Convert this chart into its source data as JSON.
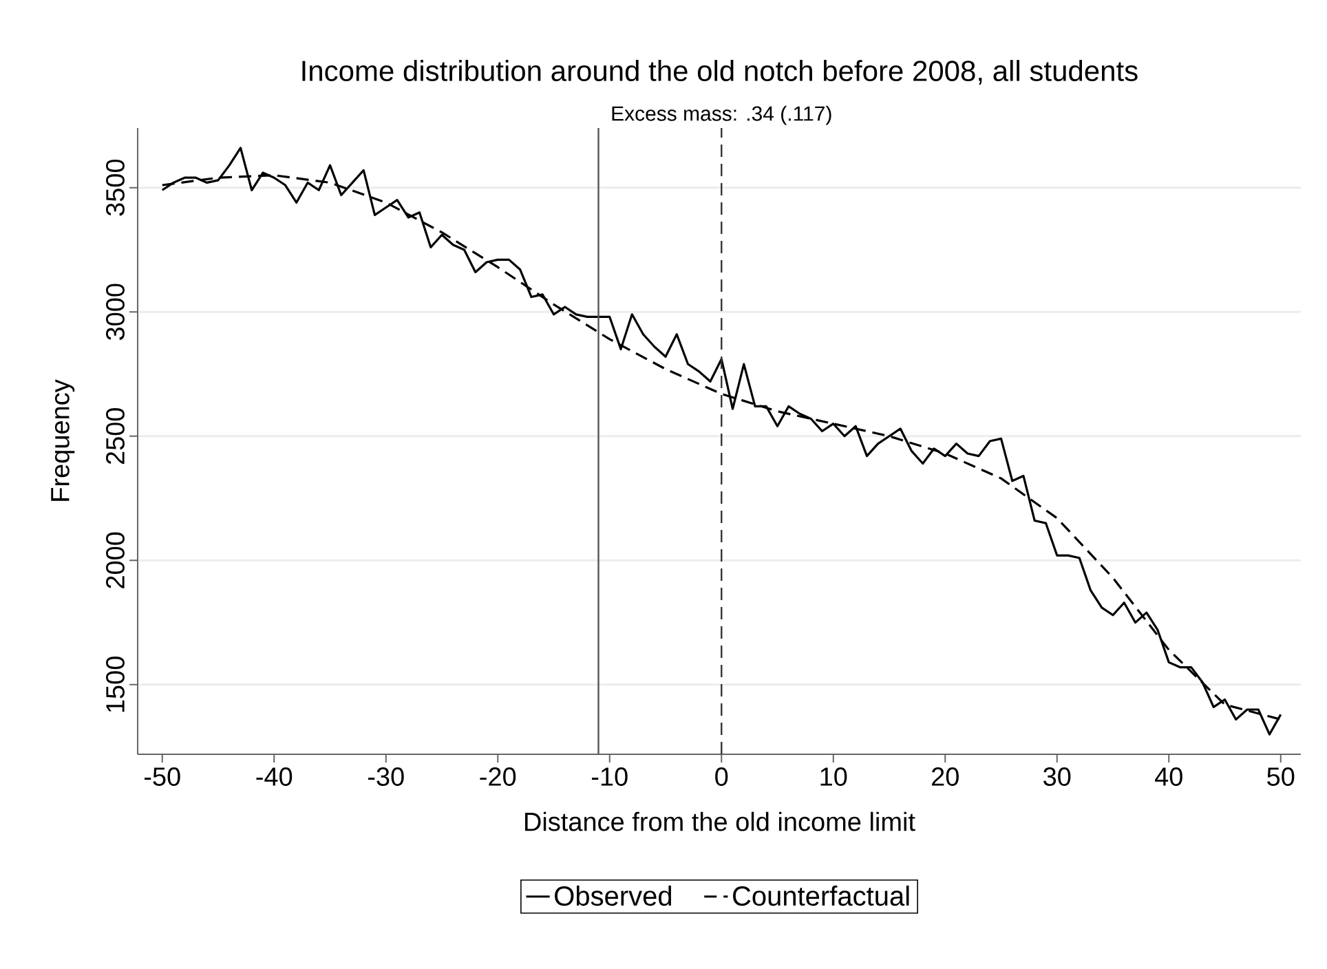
{
  "chart_data": {
    "type": "line",
    "title": "Income distribution around the old notch before 2008, all students",
    "xlabel": "Distance from the old income limit",
    "ylabel": "Frequency",
    "xlim": [
      -52.2,
      51.8
    ],
    "ylim": [
      1220,
      3740
    ],
    "xticks": [
      -50,
      -40,
      -30,
      -20,
      -10,
      0,
      10,
      20,
      30,
      40,
      50
    ],
    "yticks": [
      1500,
      2000,
      2500,
      3000,
      3500
    ],
    "grid": "y",
    "legend": "bottom",
    "series": [
      {
        "name": "Observed",
        "color": "#000000",
        "line_style": "solid",
        "x": [
          -50,
          -49,
          -48,
          -47,
          -46,
          -45,
          -44,
          -43,
          -42,
          -41,
          -40,
          -39,
          -38,
          -37,
          -36,
          -35,
          -34,
          -33,
          -32,
          -31,
          -30,
          -29,
          -28,
          -27,
          -26,
          -25,
          -24,
          -23,
          -22,
          -21,
          -20,
          -19,
          -18,
          -17,
          -16,
          -15,
          -14,
          -13,
          -12,
          -11,
          -10,
          -9,
          -8,
          -7,
          -6,
          -5,
          -4,
          -3,
          -2,
          -1,
          0,
          1,
          2,
          3,
          4,
          5,
          6,
          7,
          8,
          9,
          10,
          11,
          12,
          13,
          14,
          15,
          16,
          17,
          18,
          19,
          20,
          21,
          22,
          23,
          24,
          25,
          26,
          27,
          28,
          29,
          30,
          31,
          32,
          33,
          34,
          35,
          36,
          37,
          38,
          39,
          40,
          41,
          42,
          43,
          44,
          45,
          46,
          47,
          48,
          49,
          50
        ],
        "values": [
          3490,
          3520,
          3540,
          3540,
          3520,
          3530,
          3590,
          3660,
          3490,
          3560,
          3540,
          3510,
          3440,
          3520,
          3490,
          3590,
          3470,
          3520,
          3570,
          3390,
          3420,
          3450,
          3380,
          3400,
          3260,
          3310,
          3270,
          3250,
          3160,
          3200,
          3210,
          3210,
          3170,
          3060,
          3070,
          2990,
          3020,
          2990,
          2980,
          2980,
          2980,
          2850,
          2990,
          2910,
          2860,
          2820,
          2910,
          2790,
          2760,
          2720,
          2810,
          2610,
          2790,
          2620,
          2620,
          2540,
          2620,
          2590,
          2570,
          2520,
          2550,
          2500,
          2540,
          2420,
          2470,
          2500,
          2530,
          2440,
          2390,
          2450,
          2420,
          2470,
          2430,
          2420,
          2480,
          2490,
          2320,
          2340,
          2160,
          2150,
          2020,
          2020,
          2010,
          1880,
          1810,
          1780,
          1830,
          1750,
          1790,
          1720,
          1590,
          1570,
          1570,
          1510,
          1410,
          1440,
          1360,
          1400,
          1400,
          1300,
          1380
        ]
      },
      {
        "name": "Counterfactual",
        "color": "#000000",
        "line_style": "dashed",
        "x": [
          -50,
          -45,
          -40,
          -35,
          -30,
          -25,
          -20,
          -15,
          -10,
          -5,
          0,
          5,
          10,
          15,
          20,
          25,
          30,
          35,
          40,
          45,
          50
        ],
        "values": [
          3510,
          3540,
          3550,
          3520,
          3440,
          3320,
          3180,
          3030,
          2890,
          2770,
          2670,
          2600,
          2550,
          2500,
          2430,
          2330,
          2170,
          1930,
          1640,
          1420,
          1360
        ]
      }
    ],
    "ref_lines": [
      {
        "axis": "x",
        "value": -11,
        "color": "#555555",
        "line_style": "solid"
      },
      {
        "axis": "x",
        "value": 0,
        "color": "#333333",
        "line_style": "dashed",
        "label": "Excess mass: .34 (.117)"
      }
    ]
  }
}
